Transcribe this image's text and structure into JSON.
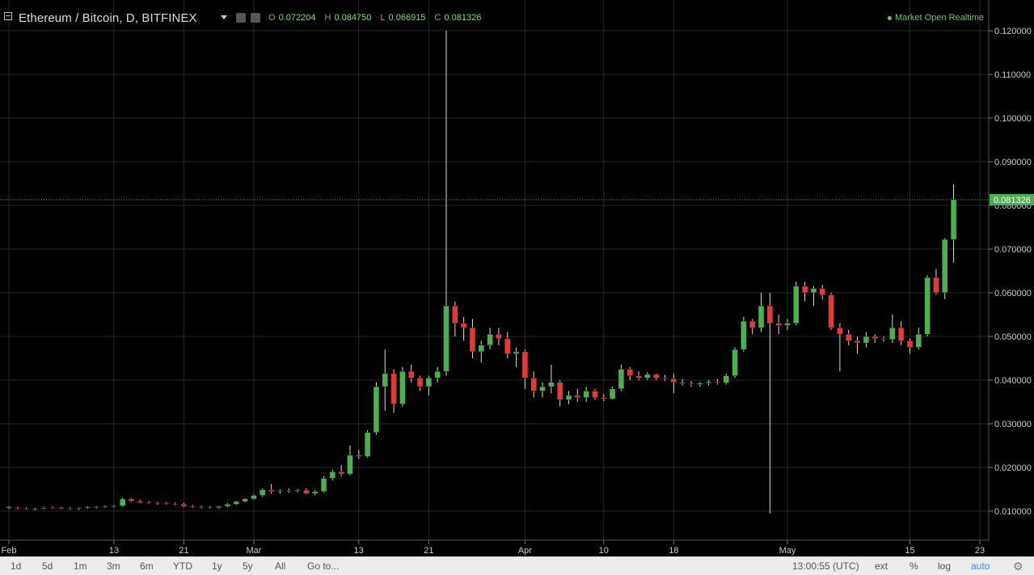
{
  "header": {
    "symbol": "Ethereum / Bitcoin, D, BITFINEX",
    "ohlc": [
      {
        "key": "O",
        "value": "0.072204"
      },
      {
        "key": "H",
        "value": "0.084750"
      },
      {
        "key": "L",
        "value": "0.066915"
      },
      {
        "key": "C",
        "value": "0.081326"
      }
    ],
    "market_status": "Market Open",
    "realtime": "Realtime"
  },
  "footer": {
    "ranges": [
      "1d",
      "5d",
      "1m",
      "3m",
      "6m",
      "YTD",
      "1y",
      "5y",
      "All"
    ],
    "goto": "Go to...",
    "time": "13:00:55 (UTC)",
    "options": [
      "ext",
      "%",
      "log",
      "auto"
    ],
    "active_option": "auto"
  },
  "colors": {
    "up": "#4caf50",
    "down": "#e53935",
    "price_line": "#4caf50",
    "grid": "#262626",
    "axis_text": "#cccccc"
  },
  "chart_data": {
    "type": "candlestick",
    "symbol": "ETH/BTC",
    "exchange": "BITFINEX",
    "interval": "D",
    "ylim": [
      0.006,
      0.1235
    ],
    "yticks": [
      "0.010000",
      "0.020000",
      "0.030000",
      "0.040000",
      "0.050000",
      "0.060000",
      "0.070000",
      "0.080000",
      "0.090000",
      "0.100000",
      "0.110000",
      "0.120000"
    ],
    "xticks": [
      {
        "label": "Feb",
        "day": 0
      },
      {
        "label": "13",
        "day": 12
      },
      {
        "label": "21",
        "day": 20
      },
      {
        "label": "Mar",
        "day": 28
      },
      {
        "label": "13",
        "day": 40
      },
      {
        "label": "21",
        "day": 48
      },
      {
        "label": "Apr",
        "day": 59
      },
      {
        "label": "10",
        "day": 68
      },
      {
        "label": "18",
        "day": 76
      },
      {
        "label": "May",
        "day": 89
      },
      {
        "label": "15",
        "day": 103
      },
      {
        "label": "23",
        "day": 111
      }
    ],
    "last_price": "0.081326",
    "candles": [
      [
        0.011,
        0.0112,
        0.0104,
        0.0107
      ],
      [
        0.0107,
        0.011,
        0.0103,
        0.0106
      ],
      [
        0.0106,
        0.0109,
        0.0103,
        0.0105
      ],
      [
        0.0105,
        0.0108,
        0.0102,
        0.0106
      ],
      [
        0.0106,
        0.011,
        0.0104,
        0.0108
      ],
      [
        0.0108,
        0.0111,
        0.0105,
        0.0107
      ],
      [
        0.0107,
        0.011,
        0.0104,
        0.0106
      ],
      [
        0.0106,
        0.0109,
        0.0103,
        0.0105
      ],
      [
        0.0105,
        0.0108,
        0.0102,
        0.0107
      ],
      [
        0.0107,
        0.0111,
        0.0105,
        0.0109
      ],
      [
        0.0109,
        0.0112,
        0.0106,
        0.011
      ],
      [
        0.011,
        0.0113,
        0.0107,
        0.0111
      ],
      [
        0.0111,
        0.0114,
        0.0108,
        0.0112
      ],
      [
        0.0112,
        0.0131,
        0.011,
        0.0128
      ],
      [
        0.0128,
        0.013,
        0.0121,
        0.0123
      ],
      [
        0.0123,
        0.0126,
        0.0118,
        0.012
      ],
      [
        0.012,
        0.0123,
        0.0116,
        0.0119
      ],
      [
        0.0119,
        0.0122,
        0.0115,
        0.0118
      ],
      [
        0.0118,
        0.0121,
        0.0114,
        0.0117
      ],
      [
        0.0117,
        0.012,
        0.0113,
        0.0116
      ],
      [
        0.0116,
        0.0119,
        0.0109,
        0.0111
      ],
      [
        0.0111,
        0.0114,
        0.0107,
        0.011
      ],
      [
        0.011,
        0.0113,
        0.0106,
        0.0109
      ],
      [
        0.0109,
        0.0112,
        0.0105,
        0.0108
      ],
      [
        0.0108,
        0.0112,
        0.0106,
        0.0111
      ],
      [
        0.0111,
        0.0118,
        0.0109,
        0.0116
      ],
      [
        0.0116,
        0.0124,
        0.0114,
        0.0122
      ],
      [
        0.0122,
        0.013,
        0.012,
        0.0128
      ],
      [
        0.0128,
        0.0138,
        0.0126,
        0.0136
      ],
      [
        0.0136,
        0.0152,
        0.0133,
        0.0149
      ],
      [
        0.0149,
        0.0162,
        0.014,
        0.0145
      ],
      [
        0.0145,
        0.015,
        0.014,
        0.0147
      ],
      [
        0.0147,
        0.0152,
        0.0142,
        0.0146
      ],
      [
        0.0146,
        0.0151,
        0.0142,
        0.0148
      ],
      [
        0.0148,
        0.0152,
        0.0138,
        0.014
      ],
      [
        0.014,
        0.0148,
        0.0136,
        0.0145
      ],
      [
        0.0145,
        0.018,
        0.0142,
        0.0175
      ],
      [
        0.0175,
        0.0195,
        0.017,
        0.019
      ],
      [
        0.019,
        0.0205,
        0.018,
        0.0185
      ],
      [
        0.0185,
        0.025,
        0.0182,
        0.0228
      ],
      [
        0.0228,
        0.024,
        0.022,
        0.0225
      ],
      [
        0.0225,
        0.0285,
        0.0222,
        0.028
      ],
      [
        0.028,
        0.0395,
        0.0275,
        0.0385
      ],
      [
        0.0385,
        0.047,
        0.033,
        0.0415
      ],
      [
        0.0415,
        0.0425,
        0.0325,
        0.0345
      ],
      [
        0.0345,
        0.043,
        0.034,
        0.042
      ],
      [
        0.042,
        0.0435,
        0.0395,
        0.0405
      ],
      [
        0.0405,
        0.041,
        0.0375,
        0.0385
      ],
      [
        0.0385,
        0.041,
        0.0365,
        0.0405
      ],
      [
        0.0405,
        0.043,
        0.0395,
        0.042
      ],
      [
        0.042,
        0.12,
        0.041,
        0.057
      ],
      [
        0.057,
        0.058,
        0.05,
        0.053
      ],
      [
        0.053,
        0.0545,
        0.049,
        0.052
      ],
      [
        0.052,
        0.054,
        0.045,
        0.0465
      ],
      [
        0.0465,
        0.049,
        0.044,
        0.048
      ],
      [
        0.048,
        0.052,
        0.047,
        0.0505
      ],
      [
        0.0505,
        0.052,
        0.048,
        0.0495
      ],
      [
        0.0495,
        0.051,
        0.045,
        0.046
      ],
      [
        0.046,
        0.0475,
        0.043,
        0.0465
      ],
      [
        0.0465,
        0.047,
        0.038,
        0.0405
      ],
      [
        0.0405,
        0.042,
        0.036,
        0.0375
      ],
      [
        0.0375,
        0.0395,
        0.036,
        0.0385
      ],
      [
        0.0385,
        0.0435,
        0.037,
        0.0395
      ],
      [
        0.0395,
        0.04,
        0.034,
        0.0355
      ],
      [
        0.0355,
        0.0375,
        0.0345,
        0.0365
      ],
      [
        0.0365,
        0.038,
        0.035,
        0.036
      ],
      [
        0.036,
        0.0385,
        0.035,
        0.0375
      ],
      [
        0.0375,
        0.038,
        0.0355,
        0.036
      ],
      [
        0.036,
        0.0368,
        0.0352,
        0.0357
      ],
      [
        0.0357,
        0.0385,
        0.0355,
        0.038
      ],
      [
        0.038,
        0.0435,
        0.0375,
        0.0425
      ],
      [
        0.0425,
        0.043,
        0.04,
        0.041
      ],
      [
        0.041,
        0.042,
        0.04,
        0.0405
      ],
      [
        0.0405,
        0.0418,
        0.04,
        0.0413
      ],
      [
        0.0413,
        0.0415,
        0.04,
        0.0405
      ],
      [
        0.0405,
        0.0412,
        0.0398,
        0.0403
      ],
      [
        0.0403,
        0.0415,
        0.037,
        0.0395
      ],
      [
        0.0395,
        0.0402,
        0.0388,
        0.0392
      ],
      [
        0.0392,
        0.0398,
        0.0385,
        0.039
      ],
      [
        0.039,
        0.0396,
        0.0385,
        0.0393
      ],
      [
        0.0393,
        0.04,
        0.0388,
        0.0396
      ],
      [
        0.0396,
        0.0402,
        0.039,
        0.0394
      ],
      [
        0.0394,
        0.0415,
        0.039,
        0.041
      ],
      [
        0.041,
        0.0475,
        0.0405,
        0.047
      ],
      [
        0.047,
        0.0545,
        0.0465,
        0.0535
      ],
      [
        0.0535,
        0.054,
        0.0505,
        0.052
      ],
      [
        0.052,
        0.06,
        0.051,
        0.057
      ],
      [
        0.057,
        0.06,
        0.0095,
        0.053
      ],
      [
        0.053,
        0.055,
        0.0505,
        0.0525
      ],
      [
        0.0525,
        0.054,
        0.0515,
        0.053
      ],
      [
        0.053,
        0.0625,
        0.0525,
        0.0615
      ],
      [
        0.0615,
        0.0625,
        0.058,
        0.06
      ],
      [
        0.06,
        0.0615,
        0.057,
        0.061
      ],
      [
        0.061,
        0.0618,
        0.0585,
        0.0595
      ],
      [
        0.0595,
        0.06,
        0.0515,
        0.052
      ],
      [
        0.052,
        0.053,
        0.042,
        0.0505
      ],
      [
        0.0505,
        0.0515,
        0.048,
        0.049
      ],
      [
        0.049,
        0.05,
        0.046,
        0.0485
      ],
      [
        0.0485,
        0.051,
        0.0475,
        0.05
      ],
      [
        0.05,
        0.0505,
        0.0485,
        0.0495
      ],
      [
        0.0495,
        0.05,
        0.0488,
        0.0493
      ],
      [
        0.0493,
        0.055,
        0.0485,
        0.052
      ],
      [
        0.052,
        0.0535,
        0.048,
        0.049
      ],
      [
        0.049,
        0.0495,
        0.046,
        0.0475
      ],
      [
        0.0475,
        0.052,
        0.047,
        0.0505
      ],
      [
        0.0505,
        0.064,
        0.05,
        0.0635
      ],
      [
        0.0635,
        0.0655,
        0.0595,
        0.06
      ],
      [
        0.06,
        0.0725,
        0.0585,
        0.0722
      ],
      [
        0.0722,
        0.0848,
        0.0669,
        0.0813
      ]
    ]
  }
}
